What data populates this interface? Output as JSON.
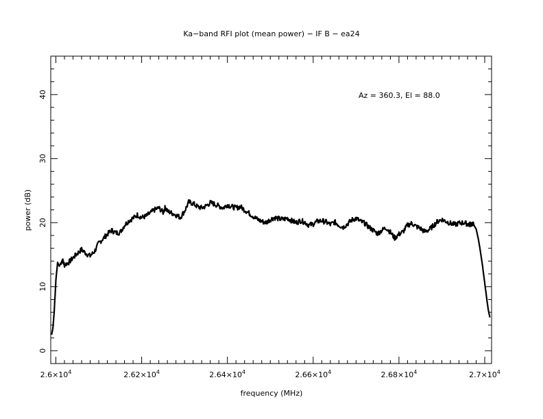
{
  "chart_data": {
    "type": "line",
    "title": "Ka−band RFI plot (mean power) − IF B − ea24",
    "xlabel": "frequency (MHz)",
    "ylabel": "power (dB)",
    "annotation": "Az = 360.3, El = 88.0",
    "xlim": [
      25988,
      27016
    ],
    "ylim": [
      -2,
      46
    ],
    "x_ticks": [
      {
        "value": 26000,
        "mant": "2.6×10",
        "exp": "4"
      },
      {
        "value": 26200,
        "mant": "2.62×10",
        "exp": "4"
      },
      {
        "value": 26400,
        "mant": "2.64×10",
        "exp": "4"
      },
      {
        "value": 26600,
        "mant": "2.66×10",
        "exp": "4"
      },
      {
        "value": 26800,
        "mant": "2.68×10",
        "exp": "4"
      },
      {
        "value": 27000,
        "mant": "2.7×10",
        "exp": "4"
      }
    ],
    "y_ticks": [
      {
        "value": 0,
        "label": "0"
      },
      {
        "value": 10,
        "label": "10"
      },
      {
        "value": 20,
        "label": "20"
      },
      {
        "value": 30,
        "label": "30"
      },
      {
        "value": 40,
        "label": "40"
      }
    ],
    "grid": false,
    "series": [
      {
        "x": [
          25990,
          25993,
          25996,
          26000,
          26004,
          26008,
          26015,
          26020,
          26030,
          26040,
          26050,
          26060,
          26070,
          26080,
          26090,
          26100,
          26110,
          26120,
          26130,
          26140,
          26150,
          26160,
          26170,
          26180,
          26190,
          26200,
          26210,
          26220,
          26230,
          26240,
          26250,
          26255,
          26260,
          26270,
          26280,
          26290,
          26300,
          26310,
          26320,
          26330,
          26340,
          26350,
          26360,
          26370,
          26380,
          26390,
          26400,
          26410,
          26420,
          26430,
          26440,
          26450,
          26460,
          26470,
          26480,
          26490,
          26500,
          26510,
          26520,
          26530,
          26540,
          26550,
          26560,
          26570,
          26580,
          26590,
          26600,
          26610,
          26620,
          26630,
          26640,
          26650,
          26660,
          26670,
          26680,
          26690,
          26700,
          26710,
          26720,
          26730,
          26740,
          26750,
          26760,
          26770,
          26780,
          26790,
          26800,
          26810,
          26820,
          26830,
          26840,
          26850,
          26860,
          26870,
          26880,
          26890,
          26900,
          26910,
          26920,
          26930,
          26940,
          26950,
          26960,
          26965,
          26970,
          26975,
          26980,
          26985,
          26990,
          26995,
          27000,
          27004,
          27008,
          27012
        ],
        "y": [
          2.5,
          3.5,
          6.0,
          11.0,
          13.8,
          13.2,
          14.2,
          13.4,
          13.8,
          14.5,
          15.2,
          15.8,
          15.2,
          14.8,
          15.5,
          16.8,
          17.5,
          18.2,
          18.8,
          18.4,
          18.5,
          19.6,
          20.3,
          20.7,
          21.2,
          20.8,
          21.0,
          21.5,
          22.0,
          22.3,
          21.6,
          22.4,
          21.8,
          21.5,
          21.2,
          20.8,
          21.8,
          23.2,
          23.0,
          22.5,
          22.3,
          22.6,
          23.1,
          22.9,
          22.6,
          22.3,
          22.8,
          22.5,
          22.3,
          22.5,
          22.0,
          21.5,
          21.0,
          20.5,
          20.2,
          20.0,
          20.5,
          20.8,
          20.6,
          20.5,
          20.7,
          20.3,
          20.0,
          20.3,
          20.1,
          19.6,
          19.8,
          20.2,
          20.3,
          20.1,
          19.7,
          20.1,
          19.6,
          19.3,
          19.8,
          20.4,
          20.7,
          20.2,
          19.9,
          19.3,
          18.8,
          18.3,
          18.8,
          19.2,
          18.5,
          17.6,
          18.2,
          18.6,
          19.6,
          19.9,
          19.4,
          19.1,
          18.6,
          18.9,
          19.5,
          20.2,
          20.5,
          20.2,
          19.9,
          19.7,
          19.9,
          20.0,
          19.8,
          19.7,
          19.9,
          19.6,
          19.0,
          17.5,
          15.5,
          13.2,
          10.6,
          8.5,
          6.5,
          5.2
        ]
      }
    ]
  }
}
